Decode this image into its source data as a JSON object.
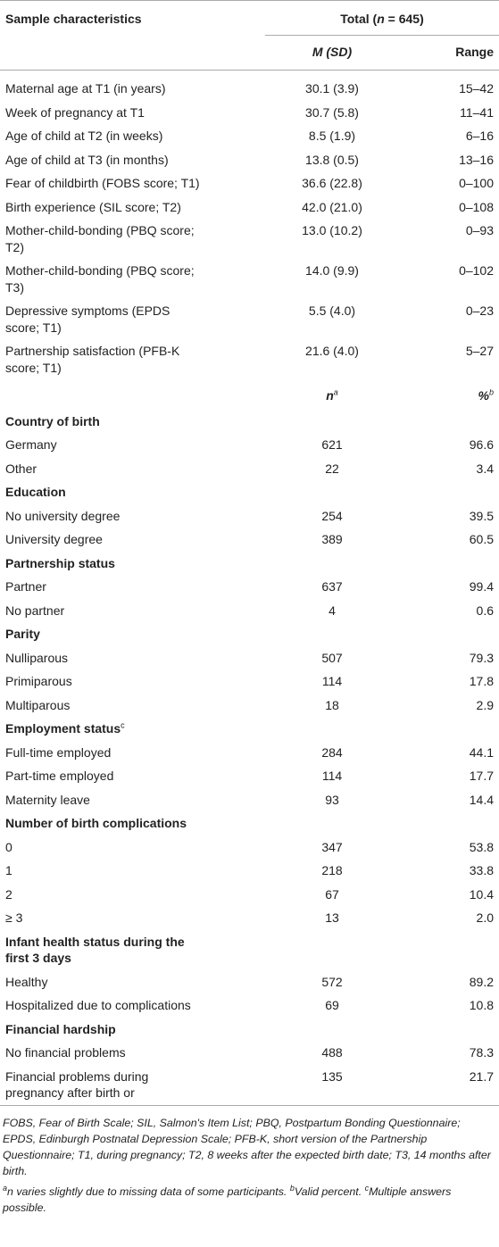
{
  "table": {
    "header": {
      "label": "Sample characteristics",
      "total": {
        "prefix": "Total (",
        "n": "n",
        "suffix": " = 645)"
      },
      "mean_sd": "M (SD)",
      "range": "Range"
    },
    "continuous": [
      {
        "label": [
          "Maternal age at T1 (in years)"
        ],
        "mean_sd": "30.1 (3.9)",
        "range": "15–42"
      },
      {
        "label": [
          "Week of pregnancy at T1"
        ],
        "mean_sd": "30.7 (5.8)",
        "range": "11–41"
      },
      {
        "label": [
          "Age of child at T2 (in weeks)"
        ],
        "mean_sd": "8.5 (1.9)",
        "range": "6–16"
      },
      {
        "label": [
          "Age of child at T3 (in months)"
        ],
        "mean_sd": "13.8 (0.5)",
        "range": "13–16"
      },
      {
        "label": [
          "Fear of childbirth (FOBS score; T1)"
        ],
        "mean_sd": "36.6 (22.8)",
        "range": "0–100"
      },
      {
        "label": [
          "Birth experience (SIL score; T2)"
        ],
        "mean_sd": "42.0 (21.0)",
        "range": "0–108"
      },
      {
        "label": [
          "Mother-child-bonding (PBQ score;",
          "T2)"
        ],
        "mean_sd": "13.0 (10.2)",
        "range": "0–93"
      },
      {
        "label": [
          "Mother-child-bonding (PBQ score;",
          "T3)"
        ],
        "mean_sd": "14.0 (9.9)",
        "range": "0–102"
      },
      {
        "label": [
          "Depressive symptoms (EPDS",
          "score; T1)"
        ],
        "mean_sd": "5.5 (4.0)",
        "range": "0–23"
      },
      {
        "label": [
          "Partnership satisfaction (PFB-K",
          "score; T1)"
        ],
        "mean_sd": "21.6 (4.0)",
        "range": "5–27"
      }
    ],
    "categorical_header": {
      "n": "n",
      "n_note": "a",
      "percent": "%",
      "percent_note": "b"
    },
    "groups": [
      {
        "title": [
          "Country of birth"
        ],
        "rows": [
          {
            "label": [
              "Germany"
            ],
            "n": "621",
            "percent": "96.6"
          },
          {
            "label": [
              "Other"
            ],
            "n": "22",
            "percent": "3.4"
          }
        ]
      },
      {
        "title": [
          "Education"
        ],
        "rows": [
          {
            "label": [
              "No university degree"
            ],
            "n": "254",
            "percent": "39.5"
          },
          {
            "label": [
              "University degree"
            ],
            "n": "389",
            "percent": "60.5"
          }
        ]
      },
      {
        "title": [
          "Partnership status"
        ],
        "rows": [
          {
            "label": [
              "Partner"
            ],
            "n": "637",
            "percent": "99.4"
          },
          {
            "label": [
              "No partner"
            ],
            "n": "4",
            "percent": "0.6"
          }
        ]
      },
      {
        "title": [
          "Parity"
        ],
        "rows": [
          {
            "label": [
              "Nulliparous"
            ],
            "n": "507",
            "percent": "79.3"
          },
          {
            "label": [
              "Primiparous"
            ],
            "n": "114",
            "percent": "17.8"
          },
          {
            "label": [
              "Multiparous"
            ],
            "n": "18",
            "percent": "2.9"
          }
        ]
      },
      {
        "title": [
          "Employment status"
        ],
        "title_note": "c",
        "rows": [
          {
            "label": [
              "Full-time employed"
            ],
            "n": "284",
            "percent": "44.1"
          },
          {
            "label": [
              "Part-time employed"
            ],
            "n": "114",
            "percent": "17.7"
          },
          {
            "label": [
              "Maternity leave"
            ],
            "n": "93",
            "percent": "14.4"
          }
        ]
      },
      {
        "title": [
          "Number of birth complications"
        ],
        "rows": [
          {
            "label": [
              "0"
            ],
            "n": "347",
            "percent": "53.8"
          },
          {
            "label": [
              "1"
            ],
            "n": "218",
            "percent": "33.8"
          },
          {
            "label": [
              "2"
            ],
            "n": "67",
            "percent": "10.4"
          },
          {
            "label": [
              "≥ 3"
            ],
            "n": "13",
            "percent": "2.0"
          }
        ]
      },
      {
        "title": [
          "Infant health status during the",
          "first 3 days"
        ],
        "rows": [
          {
            "label": [
              "Healthy"
            ],
            "n": "572",
            "percent": "89.2"
          },
          {
            "label": [
              "Hospitalized due to complications"
            ],
            "n": "69",
            "percent": "10.8"
          }
        ]
      },
      {
        "title": [
          "Financial hardship"
        ],
        "rows": [
          {
            "label": [
              "No financial problems"
            ],
            "n": "488",
            "percent": "78.3"
          },
          {
            "label": [
              "Financial problems during",
              "pregnancy after birth or"
            ],
            "n": "135",
            "percent": "21.7"
          }
        ]
      }
    ]
  },
  "footnotes": {
    "abbreviations": "FOBS, Fear of Birth Scale; SIL, Salmon's Item List; PBQ, Postpartum Bonding Questionnaire; EPDS, Edinburgh Postnatal Depression Scale; PFB-K, short version of the Partnership Questionnaire; T1, during pregnancy; T2, 8 weeks after the expected birth date; T3, 14 months after birth.",
    "notes": [
      {
        "mark": "a",
        "text": "n varies slightly due to missing data of some participants. "
      },
      {
        "mark": "b",
        "text": "Valid percent. "
      },
      {
        "mark": "c",
        "text": "Multiple answers possible."
      }
    ]
  }
}
